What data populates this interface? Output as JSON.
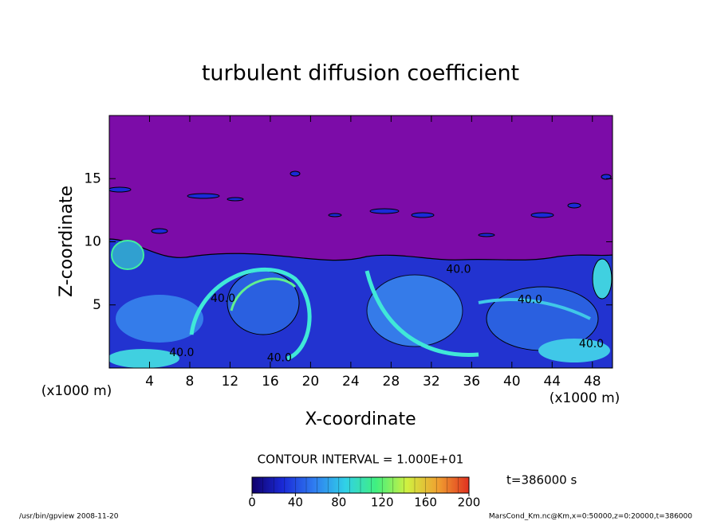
{
  "chart_data": {
    "type": "contour",
    "title": "turbulent diffusion coefficient",
    "x_label": "X-coordinate",
    "y_label": "Z-coordinate",
    "x_unit": "(x1000 m)",
    "y_unit": "(x1000 m)",
    "xlim": [
      0,
      50
    ],
    "ylim": [
      0,
      20
    ],
    "xticks": [
      4,
      8,
      12,
      16,
      20,
      24,
      28,
      32,
      36,
      40,
      44,
      48
    ],
    "yticks": [
      5,
      10,
      15
    ],
    "contour_interval": "CONTOUR INTERVAL = 1.000E+01",
    "contour_labels": [
      {
        "text": "40.0",
        "x": 7.2,
        "y": 1.2
      },
      {
        "text": "40.0",
        "x": 11.3,
        "y": 5.5
      },
      {
        "text": "40.0",
        "x": 16.9,
        "y": 0.8
      },
      {
        "text": "40.0",
        "x": 34.7,
        "y": 7.8
      },
      {
        "text": "40.0",
        "x": 41.8,
        "y": 5.4
      },
      {
        "text": "40.0",
        "x": 47.9,
        "y": 1.9
      }
    ],
    "time_label": "t=386000 s",
    "colorbar": {
      "lim": [
        0,
        200
      ],
      "ticks": [
        0,
        40,
        80,
        120,
        160,
        200
      ],
      "colors": [
        "#10006a",
        "#1a2ad8",
        "#2f7cf0",
        "#30d0e8",
        "#40f080",
        "#d0f040",
        "#f0a030",
        "#e03020"
      ]
    },
    "footer_left": "/usr/bin/gpview  2008-11-20",
    "footer_right": "MarsCond_Km.nc@Km,x=0:50000,z=0:20000,t=386000"
  }
}
